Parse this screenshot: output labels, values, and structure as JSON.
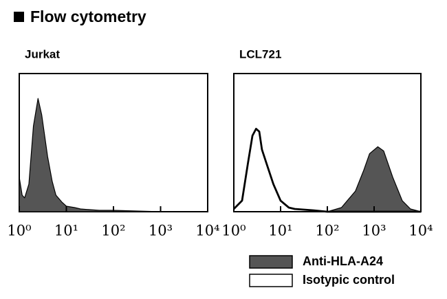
{
  "header": {
    "title": "Flow cytometry"
  },
  "chart_data": [
    {
      "type": "area",
      "title": "Jurkat",
      "xscale": "log",
      "xlim": [
        1,
        10000
      ],
      "ylim": [
        0,
        100
      ],
      "xticks": [
        {
          "value": 1,
          "label": "10⁰"
        },
        {
          "value": 10,
          "label": "10¹"
        },
        {
          "value": 100,
          "label": "10²"
        },
        {
          "value": 1000,
          "label": "10³"
        },
        {
          "value": 10000,
          "label": "10⁴"
        }
      ],
      "series": [
        {
          "name": "Anti-HLA-A24",
          "color": "#555555",
          "filled": true,
          "x": [
            1,
            1.15,
            1.3,
            1.6,
            2,
            2.5,
            3,
            4,
            5,
            6,
            8,
            10,
            15,
            20,
            50,
            100,
            1000,
            10000
          ],
          "values": [
            25,
            12,
            10,
            20,
            62,
            82,
            70,
            40,
            22,
            12,
            7,
            4,
            3,
            2,
            1,
            1,
            0,
            0
          ]
        }
      ]
    },
    {
      "type": "area",
      "title": "LCL721",
      "xscale": "log",
      "xlim": [
        1,
        10000
      ],
      "ylim": [
        0,
        100
      ],
      "xticks": [
        {
          "value": 1,
          "label": "10⁰"
        },
        {
          "value": 10,
          "label": "10¹"
        },
        {
          "value": 100,
          "label": "10²"
        },
        {
          "value": 1000,
          "label": "10³"
        },
        {
          "value": 10000,
          "label": "10⁴"
        }
      ],
      "series": [
        {
          "name": "Anti-HLA-A24",
          "color": "#555555",
          "filled": true,
          "x": [
            100,
            200,
            400,
            600,
            800,
            1200,
            1600,
            2500,
            4000,
            6000,
            10000
          ],
          "values": [
            0,
            3,
            15,
            30,
            42,
            47,
            44,
            25,
            8,
            2,
            0
          ]
        },
        {
          "name": "Isotypic control",
          "color": "#ffffff",
          "filled": false,
          "x": [
            1,
            1.5,
            2,
            2.5,
            3,
            3.5,
            4,
            5,
            7,
            10,
            15,
            20,
            50,
            100,
            10000
          ],
          "values": [
            2,
            8,
            35,
            55,
            60,
            58,
            45,
            35,
            20,
            8,
            3,
            2,
            1,
            0,
            0
          ]
        }
      ]
    }
  ]
}
